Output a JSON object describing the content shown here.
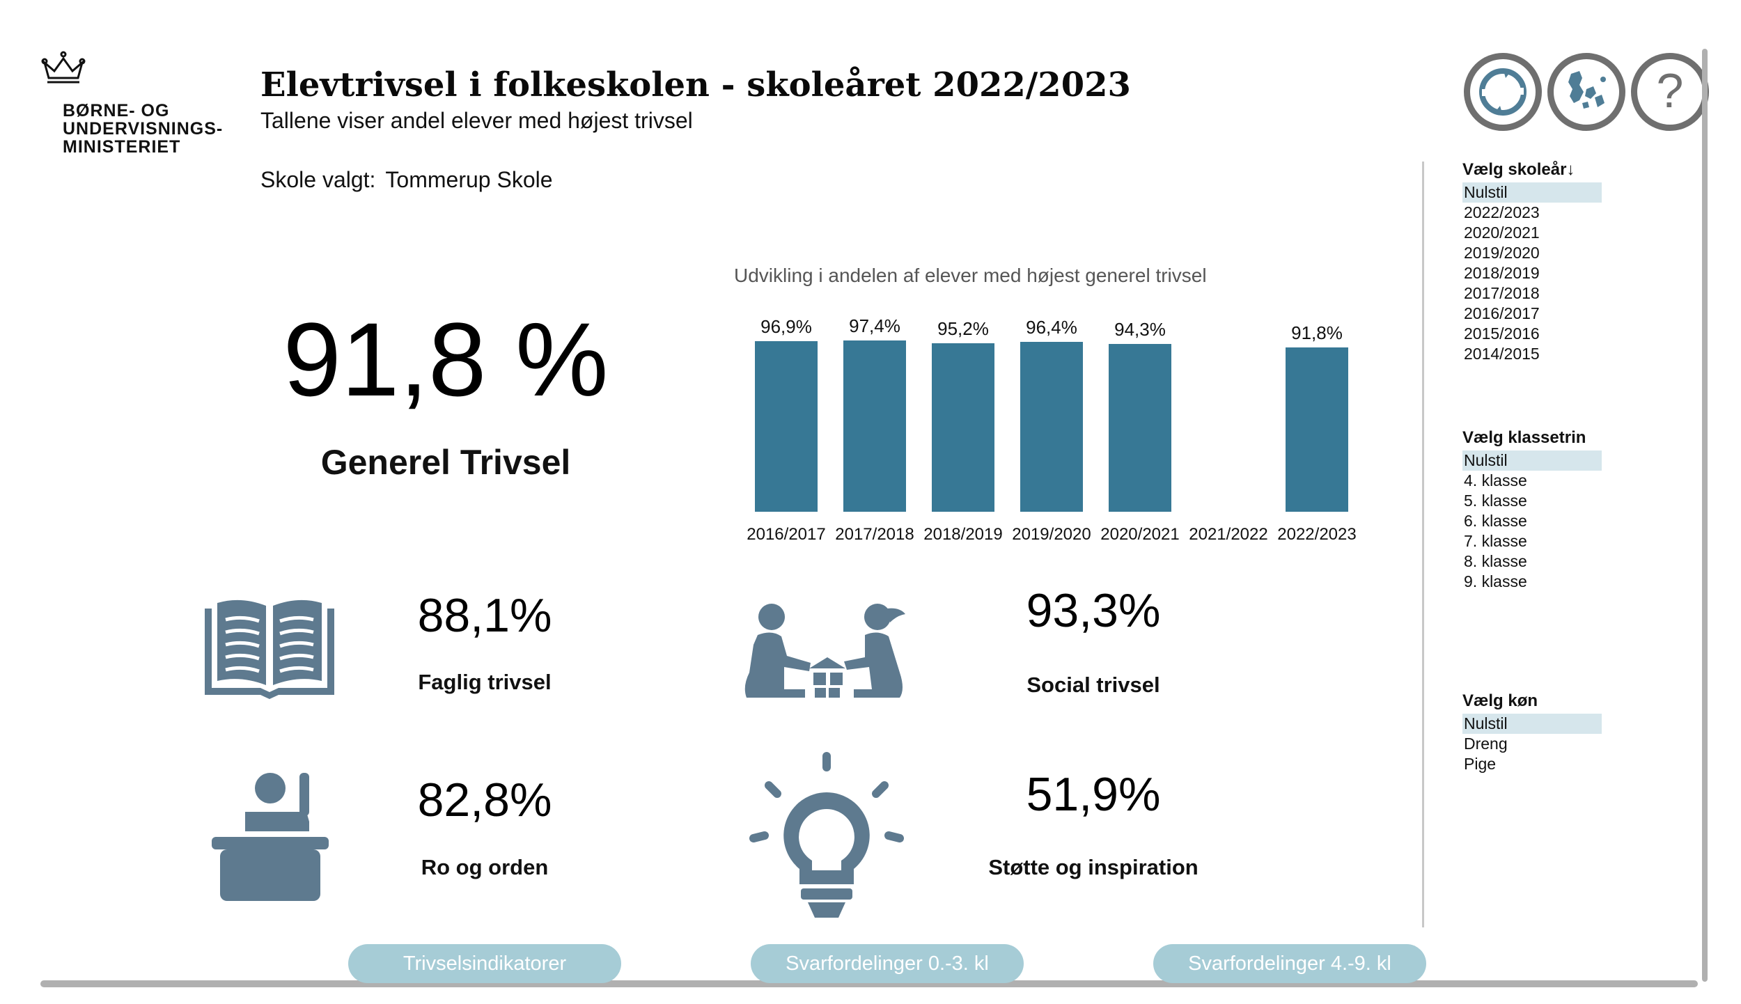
{
  "header": {
    "logo_text": [
      "BØRNE- OG",
      "UNDERVISNINGS-",
      "MINISTERIET"
    ],
    "title": "Elevtrivsel i folkeskolen - skoleåret 2022/2023",
    "subtitle": "Tallene viser andel elever med højest trivsel",
    "school_label": "Skole valgt:",
    "school_value": "Tommerup Skole"
  },
  "icons": [
    "refresh-icon",
    "denmark-map-icon",
    "help-icon"
  ],
  "main_kpi": {
    "value": "91,8 %",
    "label": "Generel Trivsel"
  },
  "chart_title": "Udvikling i andelen af elever med højest generel trivsel",
  "chart_data": {
    "type": "bar",
    "title": "Udvikling i andelen af elever med højest generel trivsel",
    "categories": [
      "2016/2017",
      "2017/2018",
      "2018/2019",
      "2019/2020",
      "2020/2021",
      "2021/2022",
      "2022/2023"
    ],
    "values": [
      96.9,
      97.4,
      95.2,
      96.4,
      94.3,
      null,
      91.8
    ],
    "labels": [
      "96,9%",
      "97,4%",
      "95,2%",
      "96,4%",
      "94,3%",
      "",
      "91,8%"
    ],
    "ylim": [
      0,
      100
    ],
    "grid": false,
    "color": "#377895"
  },
  "kpis": [
    {
      "value": "88,1%",
      "label": "Faglig trivsel",
      "icon": "book-icon"
    },
    {
      "value": "93,3%",
      "label": "Social trivsel",
      "icon": "children-playing-icon"
    },
    {
      "value": "82,8%",
      "label": "Ro og orden",
      "icon": "student-raising-hand-icon"
    },
    {
      "value": "51,9%",
      "label": "Støtte og inspiration",
      "icon": "lightbulb-icon"
    }
  ],
  "slicers": {
    "year": {
      "title": "Vælg skoleår↓",
      "items": [
        "Nulstil",
        "2022/2023",
        "2020/2021",
        "2019/2020",
        "2018/2019",
        "2017/2018",
        "2016/2017",
        "2015/2016",
        "2014/2015"
      ]
    },
    "grade": {
      "title": "Vælg klassetrin",
      "items": [
        "Nulstil",
        "4. klasse",
        "5. klasse",
        "6. klasse",
        "7. klasse",
        "8. klasse",
        "9. klasse"
      ]
    },
    "gender": {
      "title": "Vælg køn",
      "items": [
        "Nulstil",
        "Dreng",
        "Pige"
      ]
    }
  },
  "nav": [
    "Trivselsindikatorer",
    "Svarfordelinger 0.-3. kl",
    "Svarfordelinger 4.-9. kl"
  ],
  "colors": {
    "accent": "#377895",
    "icon": "#5e7a8f",
    "button": "#a6ccd6",
    "selected": "#d6e6ec"
  }
}
